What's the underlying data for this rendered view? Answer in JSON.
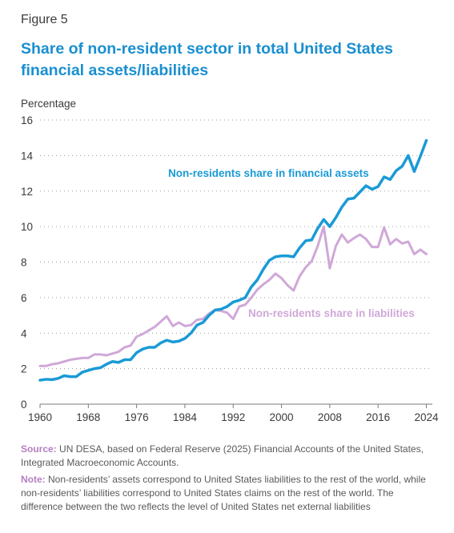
{
  "figure_label": "Figure 5",
  "title": "Share of non-resident sector in total United States financial assets/liabilities",
  "source": {
    "label": "Source:",
    "text": "UN DESA, based on Federal Reserve (2025) Financial Accounts of the United States, Integrated Macroeconomic Accounts."
  },
  "note": {
    "label": "Note:",
    "text": "Non-residents’ assets correspond to United States liabilities to the rest of the world, while non-residents’ liabilities correspond to United States claims on the rest of the world. The difference between the two reflects the level of United States net external liabilities"
  },
  "chart_data": {
    "type": "line",
    "ylabel": "Percentage",
    "xlabel": "",
    "ylim": [
      0,
      16
    ],
    "xlim": [
      1960,
      2025
    ],
    "y_ticks": [
      0,
      2,
      4,
      6,
      8,
      10,
      12,
      14,
      16
    ],
    "x_ticks": [
      1960,
      1968,
      1976,
      1984,
      1992,
      2000,
      2008,
      2016,
      2024
    ],
    "grid": "horizontal dotted",
    "x": [
      1960,
      1961,
      1962,
      1963,
      1964,
      1965,
      1966,
      1967,
      1968,
      1969,
      1970,
      1971,
      1972,
      1973,
      1974,
      1975,
      1976,
      1977,
      1978,
      1979,
      1980,
      1981,
      1982,
      1983,
      1984,
      1985,
      1986,
      1987,
      1988,
      1989,
      1990,
      1991,
      1992,
      1993,
      1994,
      1995,
      1996,
      1997,
      1998,
      1999,
      2000,
      2001,
      2002,
      2003,
      2004,
      2005,
      2006,
      2007,
      2008,
      2009,
      2010,
      2011,
      2012,
      2013,
      2014,
      2015,
      2016,
      2017,
      2018,
      2019,
      2020,
      2021,
      2022,
      2023,
      2024
    ],
    "series": [
      {
        "name": "Non-residents share in financial assets",
        "color": "#1a9ad6",
        "values": [
          1.35,
          1.4,
          1.38,
          1.45,
          1.6,
          1.55,
          1.55,
          1.8,
          1.9,
          2.0,
          2.05,
          2.25,
          2.4,
          2.35,
          2.5,
          2.5,
          2.9,
          3.1,
          3.2,
          3.2,
          3.45,
          3.6,
          3.5,
          3.55,
          3.7,
          4.0,
          4.45,
          4.6,
          5.0,
          5.3,
          5.35,
          5.5,
          5.75,
          5.85,
          6.0,
          6.6,
          7.0,
          7.6,
          8.1,
          8.3,
          8.35,
          8.35,
          8.3,
          8.8,
          9.2,
          9.25,
          9.9,
          10.4,
          10.0,
          10.5,
          11.1,
          11.55,
          11.6,
          11.95,
          12.3,
          12.1,
          12.25,
          12.8,
          12.65,
          13.15,
          13.4,
          14.0,
          13.1,
          13.95,
          14.85
        ]
      },
      {
        "name": "Non-residents share in liabilities",
        "color": "#d0a8d8",
        "values": [
          2.15,
          2.15,
          2.25,
          2.3,
          2.4,
          2.5,
          2.55,
          2.6,
          2.6,
          2.8,
          2.8,
          2.75,
          2.85,
          2.95,
          3.2,
          3.3,
          3.8,
          3.95,
          4.15,
          4.35,
          4.65,
          4.95,
          4.4,
          4.6,
          4.4,
          4.45,
          4.75,
          4.8,
          5.1,
          5.3,
          5.25,
          5.15,
          4.8,
          5.5,
          5.6,
          6.0,
          6.45,
          6.75,
          7.0,
          7.35,
          7.1,
          6.7,
          6.4,
          7.2,
          7.7,
          8.05,
          8.9,
          10.0,
          7.65,
          8.9,
          9.55,
          9.1,
          9.35,
          9.55,
          9.3,
          8.85,
          8.85,
          9.95,
          9.0,
          9.3,
          9.05,
          9.15,
          8.45,
          8.7,
          8.45
        ]
      }
    ],
    "annotations": [
      {
        "text": "Non-residents share in financial assets",
        "series": 0
      },
      {
        "text": "Non-residents share in liabilities",
        "series": 1
      }
    ]
  }
}
